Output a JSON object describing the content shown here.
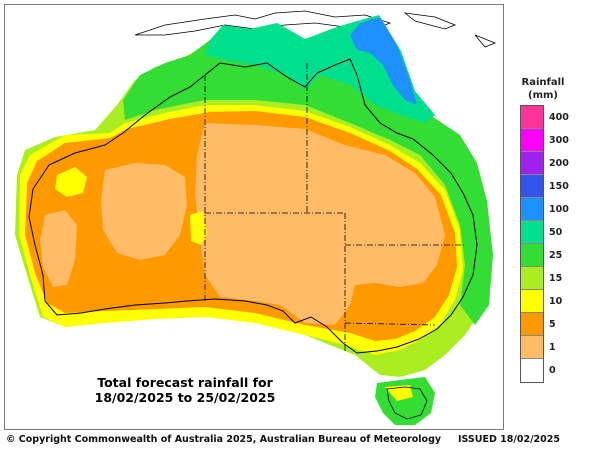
{
  "map": {
    "title_line1": "Total forecast rainfall for",
    "title_line2": "18/02/2025 to 25/02/2025"
  },
  "legend": {
    "title_line1": "Rainfall",
    "title_line2": "(mm)",
    "bands": [
      {
        "label": "400",
        "color": "#ff3399"
      },
      {
        "label": "300",
        "color": "#ff00ff"
      },
      {
        "label": "200",
        "color": "#a020f0"
      },
      {
        "label": "150",
        "color": "#3355ee"
      },
      {
        "label": "100",
        "color": "#1e90ff"
      },
      {
        "label": "50",
        "color": "#00e08c"
      },
      {
        "label": "25",
        "color": "#33dd33"
      },
      {
        "label": "15",
        "color": "#aaee22"
      },
      {
        "label": "10",
        "color": "#ffff00"
      },
      {
        "label": "5",
        "color": "#ff9900"
      },
      {
        "label": "1",
        "color": "#ffbb66"
      },
      {
        "label": "0",
        "color": "#ffffff"
      }
    ]
  },
  "footer": {
    "copyright": "© Copyright Commonwealth of Australia 2025, Australian Bureau of Meteorology",
    "issued": "ISSUED 18/02/2025"
  }
}
